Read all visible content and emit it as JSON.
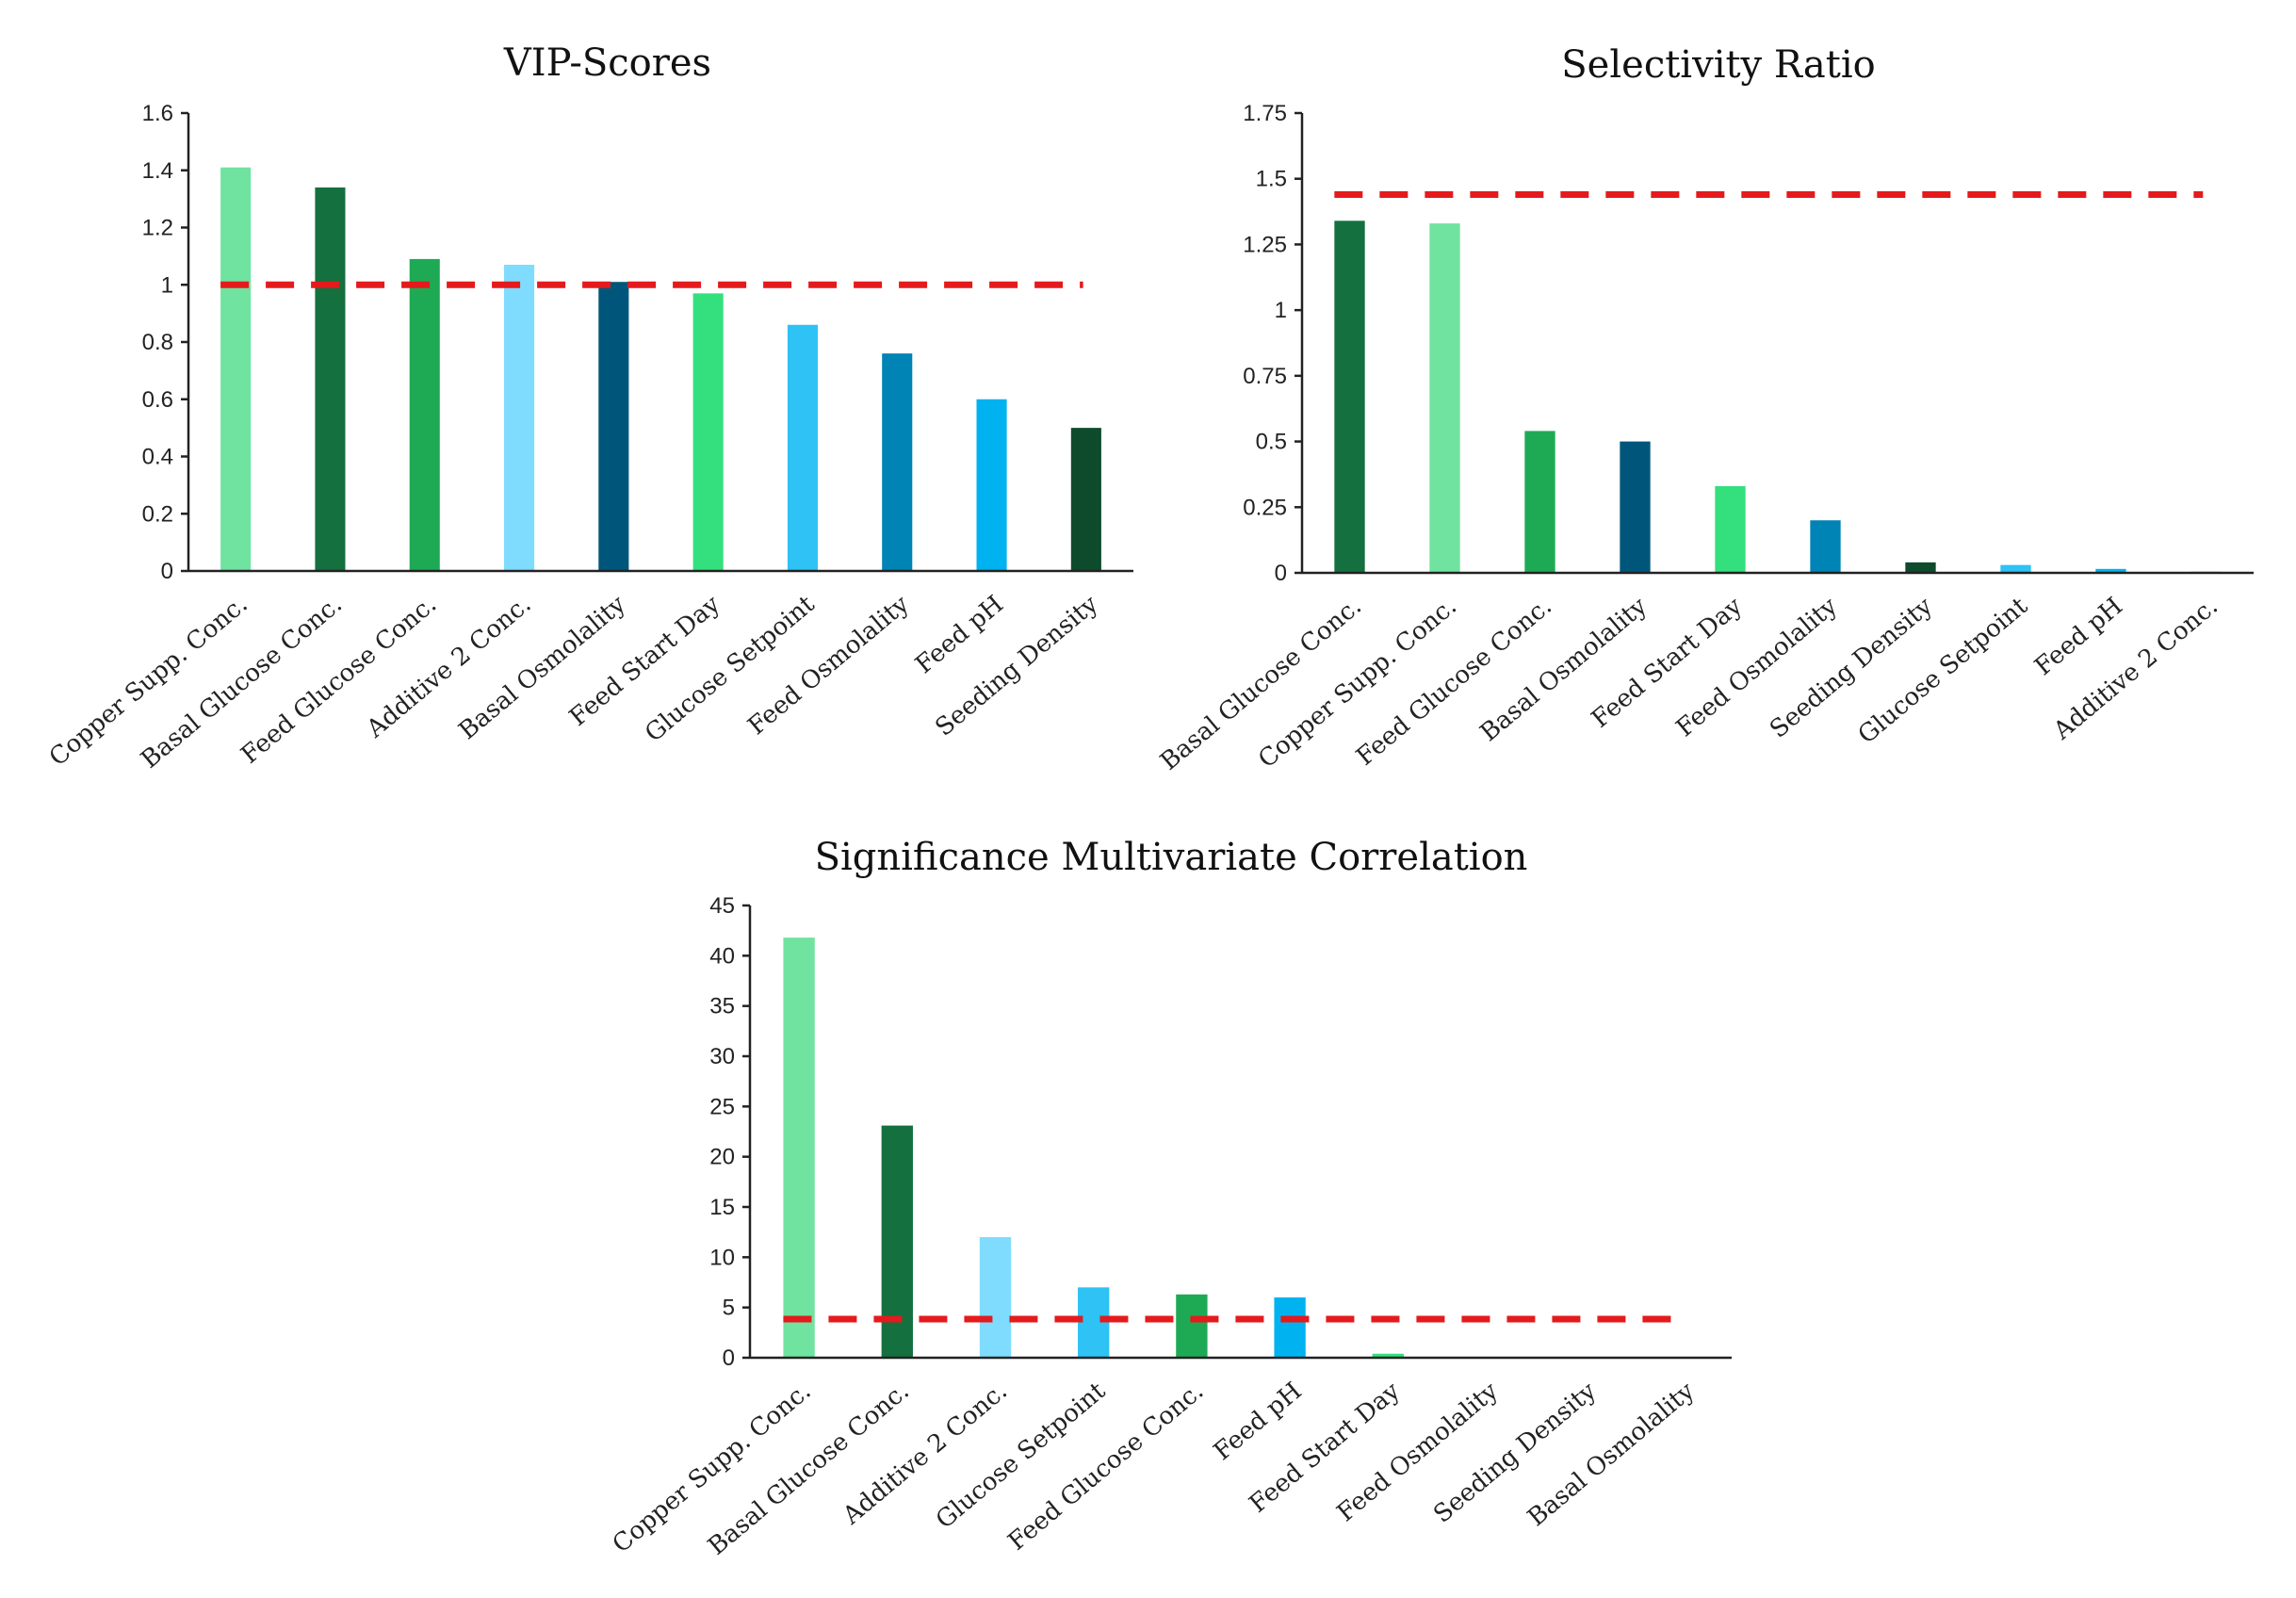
{
  "chart_data": [
    {
      "type": "bar",
      "title": "VIP-Scores",
      "categories": [
        "Copper Supp. Conc.",
        "Basal Glucose Conc.",
        "Feed Glucose Conc.",
        "Additive 2 Conc.",
        "Basal Osmolality",
        "Feed Start Day",
        "Glucose Setpoint",
        "Feed Osmolality",
        "Feed pH",
        "Seeding Density"
      ],
      "values": [
        1.41,
        1.34,
        1.09,
        1.07,
        1.01,
        0.97,
        0.86,
        0.76,
        0.6,
        0.5
      ],
      "colors": [
        "#6fe39f",
        "#14703f",
        "#1eaa55",
        "#7fdcff",
        "#00567a",
        "#33e07d",
        "#2ec2f5",
        "#0083b5",
        "#00b3f0",
        "#0e4b2c"
      ],
      "ylim": [
        0,
        1.6
      ],
      "yticks": [
        "0",
        "0.2",
        "0.4",
        "0.6",
        "0.8",
        "1",
        "1.2",
        "1.4",
        "1.6"
      ],
      "threshold": 1.0,
      "threshold_color": "#e41a1c",
      "xlabel": "",
      "ylabel": ""
    },
    {
      "type": "bar",
      "title": "Selectivity Ratio",
      "categories": [
        "Basal Glucose Conc.",
        "Copper Supp. Conc.",
        "Feed Glucose Conc.",
        "Basal Osmolality",
        "Feed Start Day",
        "Feed Osmolality",
        "Seeding Density",
        "Glucose Setpoint",
        "Feed pH",
        "Additive 2 Conc."
      ],
      "values": [
        1.34,
        1.33,
        0.54,
        0.5,
        0.33,
        0.2,
        0.04,
        0.03,
        0.015,
        0.005
      ],
      "colors": [
        "#14703f",
        "#6fe39f",
        "#1eaa55",
        "#00567a",
        "#33e07d",
        "#0083b5",
        "#0e4b2c",
        "#2ec2f5",
        "#00b3f0",
        "#7fdcff"
      ],
      "ylim": [
        0,
        1.75
      ],
      "yticks": [
        "0",
        "0.25",
        "0.5",
        "0.75",
        "1",
        "1.25",
        "1.5",
        "1.75"
      ],
      "threshold": 1.44,
      "threshold_color": "#e41a1c",
      "xlabel": "",
      "ylabel": ""
    },
    {
      "type": "bar",
      "title": "Significance Multivariate Correlation",
      "categories": [
        "Copper Supp. Conc.",
        "Basal Glucose Conc.",
        "Additive 2 Conc.",
        "Glucose Setpoint",
        "Feed Glucose Conc.",
        "Feed pH",
        "Feed Start Day",
        "Feed Osmolality",
        "Seeding Density",
        "Basal Osmolality"
      ],
      "values": [
        41.8,
        23.1,
        12.0,
        7.0,
        6.3,
        6.0,
        0.4,
        0,
        0,
        0
      ],
      "colors": [
        "#6fe39f",
        "#14703f",
        "#7fdcff",
        "#2ec2f5",
        "#1eaa55",
        "#00b3f0",
        "#33e07d",
        "#0083b5",
        "#0e4b2c",
        "#00567a"
      ],
      "ylim": [
        0,
        45
      ],
      "yticks": [
        "0",
        "5",
        "10",
        "15",
        "20",
        "25",
        "30",
        "35",
        "40",
        "45"
      ],
      "threshold": 3.84,
      "threshold_color": "#e41a1c",
      "xlabel": "",
      "ylabel": ""
    }
  ]
}
